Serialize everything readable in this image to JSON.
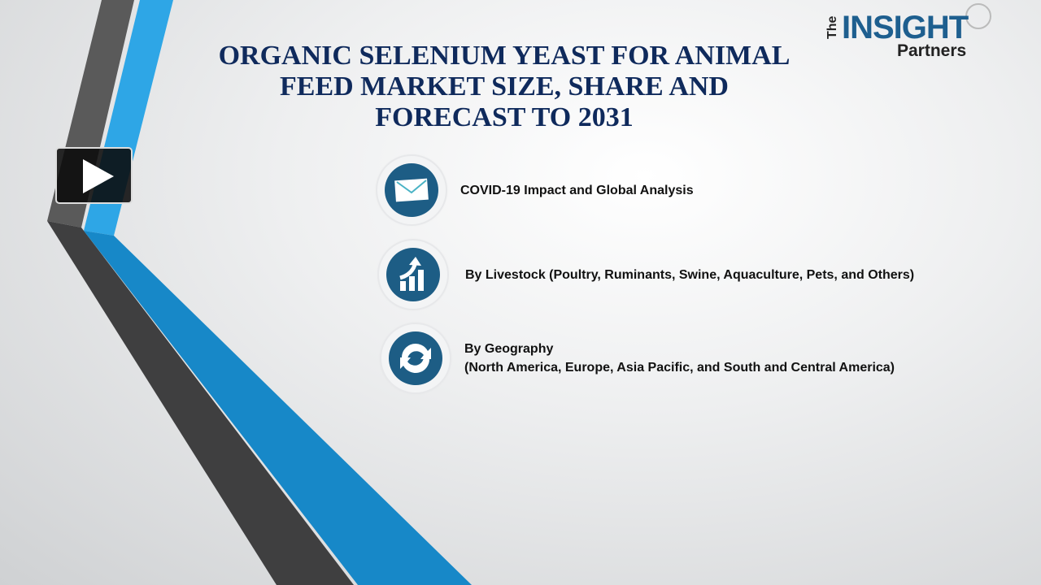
{
  "title_lines": [
    "ORGANIC SELENIUM YEAST FOR ANIMAL",
    "FEED MARKET SIZE, SHARE AND",
    "FORECAST TO 2031"
  ],
  "logo": {
    "the": "The",
    "insight": "INSIGHT",
    "partners": "Partners"
  },
  "colors": {
    "title": "#0f2a5c",
    "icon_bg": "#1d5d85",
    "stripe_blue": "#2ea6e6",
    "stripe_gray": "#555555"
  },
  "items": [
    {
      "icon": "envelope-icon",
      "lines": [
        "COVID-19 Impact and Global Analysis"
      ]
    },
    {
      "icon": "growth-chart-icon",
      "lines": [
        "By Livestock (Poultry, Ruminants, Swine, Aquaculture, Pets, and Others)"
      ]
    },
    {
      "icon": "refresh-arrows-icon",
      "lines": [
        "By Geography",
        "(North America, Europe, Asia Pacific, and South and Central America)"
      ]
    }
  ],
  "play_button": {
    "icon": "play-icon"
  }
}
